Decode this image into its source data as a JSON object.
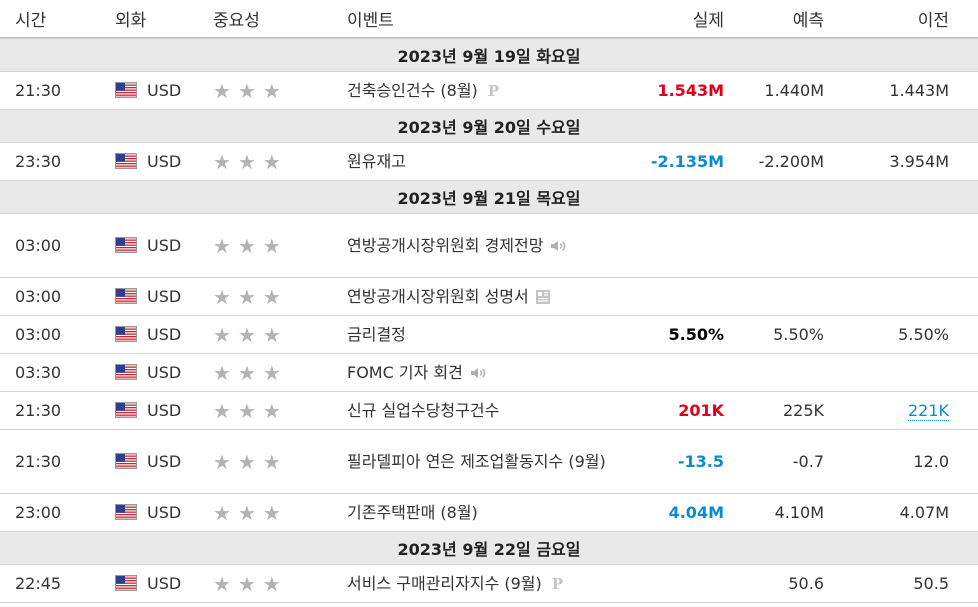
{
  "header": {
    "time": "시간",
    "currency": "외화",
    "importance": "중요성",
    "event": "이벤트",
    "actual": "실제",
    "forecast": "예측",
    "previous": "이전"
  },
  "colors": {
    "positive": "#e0001b",
    "negative": "#0b8ad6",
    "neutral": "#000000",
    "star": "#b3b3b3"
  },
  "dates": {
    "d19": "2023년 9월 19일 화요일",
    "d20": "2023년 9월 20일 수요일",
    "d21": "2023년 9월 21일 목요일",
    "d22": "2023년 9월 22일 금요일"
  },
  "rows": [
    {
      "time": "21:30",
      "currency": "USD",
      "importance": 3,
      "event": "건축승인건수 (8월)",
      "event_icon": "preliminary-icon",
      "actual": "1.543M",
      "actual_color": "red",
      "forecast": "1.440M",
      "previous": "1.443M"
    },
    {
      "time": "23:30",
      "currency": "USD",
      "importance": 3,
      "event": "원유재고",
      "actual": "-2.135M",
      "actual_color": "blue",
      "forecast": "-2.200M",
      "previous": "3.954M"
    },
    {
      "time": "03:00",
      "currency": "USD",
      "importance": 3,
      "event": "연방공개시장위원회 경제전망",
      "event_icon": "speaker-icon",
      "actual": "",
      "forecast": "",
      "previous": ""
    },
    {
      "time": "03:00",
      "currency": "USD",
      "importance": 3,
      "event": "연방공개시장위원회 성명서",
      "event_icon": "document-icon",
      "actual": "",
      "forecast": "",
      "previous": ""
    },
    {
      "time": "03:00",
      "currency": "USD",
      "importance": 3,
      "event": "금리결정",
      "actual": "5.50%",
      "actual_color": "black",
      "forecast": "5.50%",
      "previous": "5.50%"
    },
    {
      "time": "03:30",
      "currency": "USD",
      "importance": 3,
      "event": "FOMC 기자 회견",
      "event_icon": "speaker-icon",
      "actual": "",
      "forecast": "",
      "previous": ""
    },
    {
      "time": "21:30",
      "currency": "USD",
      "importance": 3,
      "event": "신규 실업수당청구건수",
      "actual": "201K",
      "actual_color": "red",
      "forecast": "225K",
      "previous": "221K",
      "previous_link": true
    },
    {
      "time": "21:30",
      "currency": "USD",
      "importance": 3,
      "event": "필라델피아 연은 제조업활동지수 (9월)",
      "actual": "-13.5",
      "actual_color": "blue",
      "forecast": "-0.7",
      "previous": "12.0"
    },
    {
      "time": "23:00",
      "currency": "USD",
      "importance": 3,
      "event": "기존주택판매 (8월)",
      "actual": "4.04M",
      "actual_color": "blue",
      "forecast": "4.10M",
      "previous": "4.07M"
    },
    {
      "time": "22:45",
      "currency": "USD",
      "importance": 3,
      "event": "서비스 구매관리자지수 (9월)",
      "event_icon": "preliminary-icon",
      "actual": "",
      "forecast": "50.6",
      "previous": "50.5"
    }
  ]
}
